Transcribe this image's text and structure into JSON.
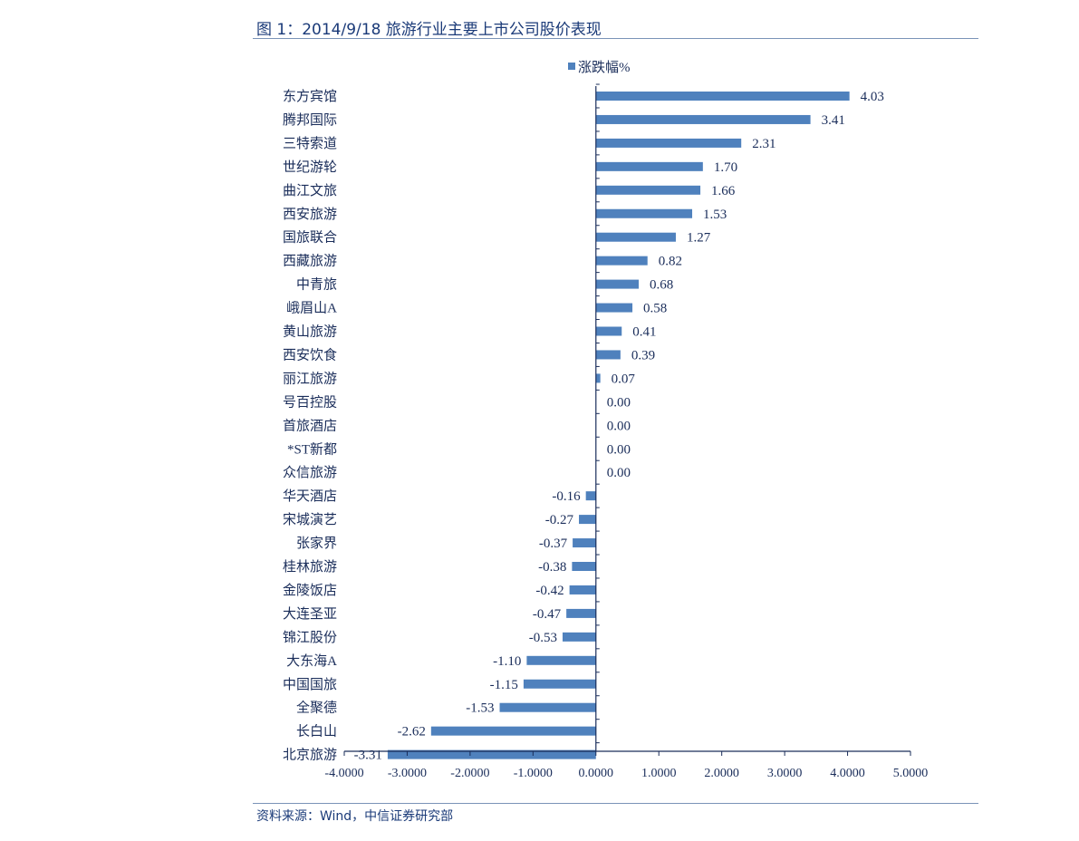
{
  "page": {
    "title": "图 1：2014/9/18 旅游行业主要上市公司股价表现",
    "source": "资料来源：Wind，中信证券研究部"
  },
  "chart_data": {
    "type": "bar",
    "orientation": "horizontal",
    "categories": [
      "东方宾馆",
      "腾邦国际",
      "三特索道",
      "世纪游轮",
      "曲江文旅",
      "西安旅游",
      "国旅联合",
      "西藏旅游",
      "中青旅",
      "峨眉山A",
      "黄山旅游",
      "西安饮食",
      "丽江旅游",
      "号百控股",
      "首旅酒店",
      "*ST新都",
      "众信旅游",
      "华天酒店",
      "宋城演艺",
      "张家界",
      "桂林旅游",
      "金陵饭店",
      "大连圣亚",
      "锦江股份",
      "大东海A",
      "中国国旅",
      "全聚德",
      "长白山",
      "北京旅游"
    ],
    "series": [
      {
        "name": "涨跌幅%",
        "color": "#4f81bd",
        "values": [
          4.03,
          3.41,
          2.31,
          1.7,
          1.66,
          1.53,
          1.27,
          0.82,
          0.68,
          0.58,
          0.41,
          0.39,
          0.07,
          0.0,
          0.0,
          0.0,
          0.0,
          -0.16,
          -0.27,
          -0.37,
          -0.38,
          -0.42,
          -0.47,
          -0.53,
          -1.1,
          -1.15,
          -1.53,
          -2.62,
          -3.31
        ],
        "labels": [
          "4.03",
          "3.41",
          "2.31",
          "1.70",
          "1.66",
          "1.53",
          "1.27",
          "0.82",
          "0.68",
          "0.58",
          "0.41",
          "0.39",
          "0.07",
          "0.00",
          "0.00",
          "0.00",
          "0.00",
          "-0.16",
          "-0.27",
          "-0.37",
          "-0.38",
          "-0.42",
          "-0.47",
          "-0.53",
          "-1.10",
          "-1.15",
          "-1.53",
          "-2.62",
          "-3.31"
        ]
      }
    ],
    "xlim": [
      -4,
      5
    ],
    "xticks": [
      -4,
      -3,
      -2,
      -1,
      0,
      1,
      2,
      3,
      4,
      5
    ],
    "xtick_labels": [
      "-4.0000",
      "-3.0000",
      "-2.0000",
      "-1.0000",
      "0.0000",
      "1.0000",
      "2.0000",
      "3.0000",
      "4.0000",
      "5.0000"
    ],
    "grid": false,
    "legend_position": "top"
  }
}
